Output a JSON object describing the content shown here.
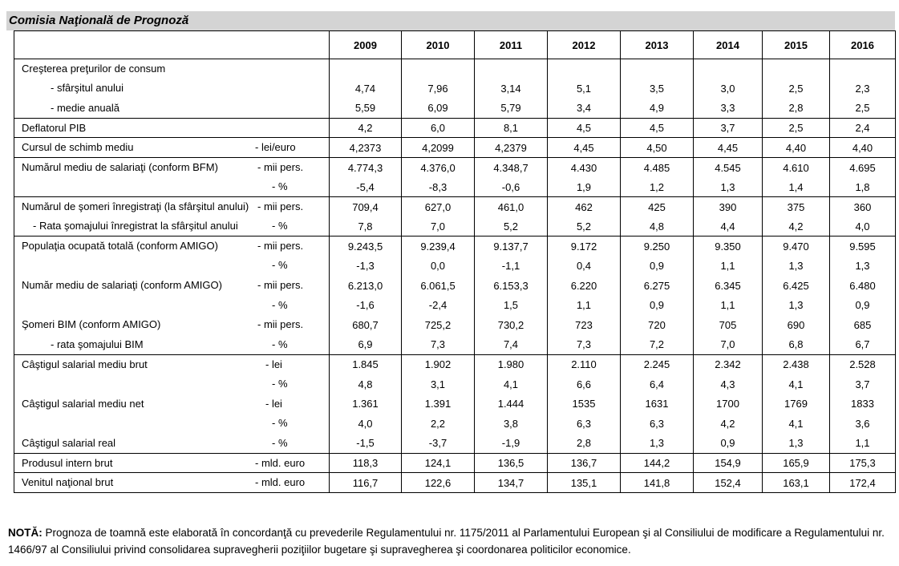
{
  "header": {
    "title": "Comisia Naţională de Prognoză"
  },
  "years": [
    "2009",
    "2010",
    "2011",
    "2012",
    "2013",
    "2014",
    "2015",
    "2016"
  ],
  "rows": [
    {
      "label": "Creşterea preţurilor de consum",
      "unit": "",
      "values": [
        "",
        "",
        "",
        "",
        "",
        "",
        "",
        ""
      ],
      "indent": 0,
      "grp_end": false
    },
    {
      "label": "- sfârşitul anului",
      "unit": "",
      "values": [
        "4,74",
        "7,96",
        "3,14",
        "5,1",
        "3,5",
        "3,0",
        "2,5",
        "2,3"
      ],
      "indent": 1,
      "grp_end": false
    },
    {
      "label": "- medie anuală",
      "unit": "",
      "values": [
        "5,59",
        "6,09",
        "5,79",
        "3,4",
        "4,9",
        "3,3",
        "2,8",
        "2,5"
      ],
      "indent": 1,
      "grp_end": true
    },
    {
      "label": "Deflatorul PIB",
      "unit": "",
      "values": [
        "4,2",
        "6,0",
        "8,1",
        "4,5",
        "4,5",
        "3,7",
        "2,5",
        "2,4"
      ],
      "indent": 0,
      "grp_end": true
    },
    {
      "label": "Cursul de schimb mediu",
      "unit": "- lei/euro",
      "values": [
        "4,2373",
        "4,2099",
        "4,2379",
        "4,45",
        "4,50",
        "4,45",
        "4,40",
        "4,40"
      ],
      "indent": 0,
      "grp_end": true
    },
    {
      "label": "Numărul mediu de salariaţi  (conform BFM)",
      "unit": "- mii pers.",
      "values": [
        "4.774,3",
        "4.376,0",
        "4.348,7",
        "4.430",
        "4.485",
        "4.545",
        "4.610",
        "4.695"
      ],
      "indent": 0,
      "grp_end": false
    },
    {
      "label": "",
      "unit": "- %",
      "values": [
        "-5,4",
        "-8,3",
        "-0,6",
        "1,9",
        "1,2",
        "1,3",
        "1,4",
        "1,8"
      ],
      "indent": 0,
      "grp_end": true
    },
    {
      "label": "Numărul de şomeri înregistraţi (la sfârşitul anului)",
      "unit": "- mii pers.",
      "values": [
        "709,4",
        "627,0",
        "461,0",
        "462",
        "425",
        "390",
        "375",
        "360"
      ],
      "indent": 0,
      "grp_end": false
    },
    {
      "label": "- Rata şomajului înregistrat la sfârşitul anului",
      "unit": "- %",
      "values": [
        "7,8",
        "7,0",
        "5,2",
        "5,2",
        "4,8",
        "4,4",
        "4,2",
        "4,0"
      ],
      "indent": 2,
      "grp_end": true
    },
    {
      "label": "Populaţia ocupată totală  (conform  AMIGO)",
      "unit": "- mii pers.",
      "values": [
        "9.243,5",
        "9.239,4",
        "9.137,7",
        "9.172",
        "9.250",
        "9.350",
        "9.470",
        "9.595"
      ],
      "indent": 0,
      "grp_end": false
    },
    {
      "label": "",
      "unit": "- %",
      "values": [
        "-1,3",
        "0,0",
        "-1,1",
        "0,4",
        "0,9",
        "1,1",
        "1,3",
        "1,3"
      ],
      "indent": 0,
      "grp_end": false
    },
    {
      "label": "Număr mediu de salariaţi (conform  AMIGO)",
      "unit": "- mii pers.",
      "values": [
        "6.213,0",
        "6.061,5",
        "6.153,3",
        "6.220",
        "6.275",
        "6.345",
        "6.425",
        "6.480"
      ],
      "indent": 0,
      "grp_end": false
    },
    {
      "label": "",
      "unit": "- %",
      "values": [
        "-1,6",
        "-2,4",
        "1,5",
        "1,1",
        "0,9",
        "1,1",
        "1,3",
        "0,9"
      ],
      "indent": 0,
      "grp_end": false
    },
    {
      "label": "Şomeri BIM (conform  AMIGO)",
      "unit": "- mii pers.",
      "values": [
        "680,7",
        "725,2",
        "730,2",
        "723",
        "720",
        "705",
        "690",
        "685"
      ],
      "indent": 0,
      "grp_end": false
    },
    {
      "label": "- rata şomajului BIM",
      "unit": "- %",
      "values": [
        "6,9",
        "7,3",
        "7,4",
        "7,3",
        "7,2",
        "7,0",
        "6,8",
        "6,7"
      ],
      "indent": 3,
      "grp_end": true
    },
    {
      "label": "Câştigul salarial mediu brut",
      "unit": "- lei",
      "values": [
        "1.845",
        "1.902",
        "1.980",
        "2.110",
        "2.245",
        "2.342",
        "2.438",
        "2.528"
      ],
      "indent": 0,
      "grp_end": false
    },
    {
      "label": "",
      "unit": "- %",
      "values": [
        "4,8",
        "3,1",
        "4,1",
        "6,6",
        "6,4",
        "4,3",
        "4,1",
        "3,7"
      ],
      "indent": 0,
      "grp_end": false
    },
    {
      "label": "Câştigul salarial mediu net",
      "unit": "- lei",
      "values": [
        "1.361",
        "1.391",
        "1.444",
        "1535",
        "1631",
        "1700",
        "1769",
        "1833"
      ],
      "indent": 0,
      "grp_end": false
    },
    {
      "label": "",
      "unit": "- %",
      "values": [
        "4,0",
        "2,2",
        "3,8",
        "6,3",
        "6,3",
        "4,2",
        "4,1",
        "3,6"
      ],
      "indent": 0,
      "grp_end": false
    },
    {
      "label": "Câştigul salarial real",
      "unit": "- %",
      "values": [
        "-1,5",
        "-3,7",
        "-1,9",
        "2,8",
        "1,3",
        "0,9",
        "1,3",
        "1,1"
      ],
      "indent": 0,
      "grp_end": true
    },
    {
      "label": "Produsul intern brut",
      "unit": "- mld. euro",
      "values": [
        "118,3",
        "124,1",
        "136,5",
        "136,7",
        "144,2",
        "154,9",
        "165,9",
        "175,3"
      ],
      "indent": 0,
      "grp_end": true
    },
    {
      "label": "Venitul naţional brut",
      "unit": "- mld. euro",
      "values": [
        "116,7",
        "122,6",
        "134,7",
        "135,1",
        "141,8",
        "152,4",
        "163,1",
        "172,4"
      ],
      "indent": 0,
      "grp_end": true
    }
  ],
  "note": {
    "label": "NOTĂ:",
    "text": " Prognoza de toamnă este elaborată în concordanţă cu prevederile Regulamentului nr. 1175/2011 al Parlamentului European şi al Consiliului de modificare a Regulamentului nr. 1466/97 al Consiliului privind consolidarea supravegherii poziţiilor bugetare şi supravegherea şi coordonarea politicilor economice."
  }
}
